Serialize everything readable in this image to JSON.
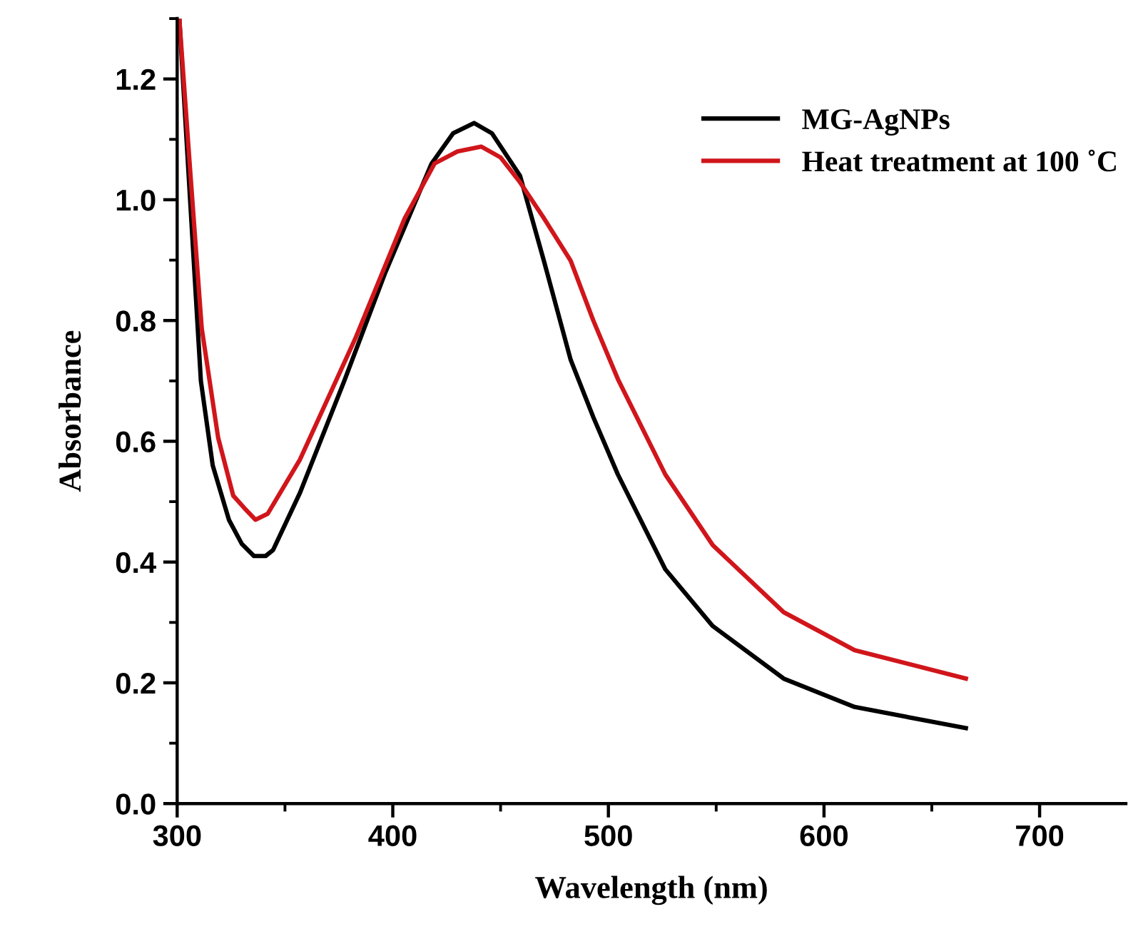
{
  "chart_data": {
    "type": "line",
    "xlabel": "Wavelength (nm)",
    "ylabel": "Absorbance",
    "xlim": [
      300,
      740
    ],
    "ylim": [
      0,
      1.3
    ],
    "xticks": [
      300,
      400,
      500,
      600,
      700
    ],
    "yticks": [
      {
        "value": 0,
        "label": "0.0"
      },
      0.2,
      0.4,
      0.6,
      0.8,
      {
        "value": 1,
        "label": "1.0"
      },
      1.2
    ],
    "legend": "top right",
    "grid": false,
    "line_style": "solid",
    "marker": "none",
    "series": [
      {
        "name": "MG-AgNPs",
        "color": "#000000",
        "x": [
          301,
          306,
          311,
          316.5,
          324,
          330,
          335.6,
          341,
          344.5,
          357,
          377.5,
          396.6,
          418,
          428,
          437.7,
          446,
          459,
          470,
          482.5,
          493,
          504.4,
          526.4,
          548.4,
          581.3,
          614.2,
          665.8
        ],
        "values": [
          1.3,
          1.0,
          0.7,
          0.56,
          0.47,
          0.43,
          0.41,
          0.41,
          0.42,
          0.515,
          0.7,
          0.88,
          1.06,
          1.11,
          1.127,
          1.11,
          1.04,
          0.9,
          0.735,
          0.64,
          0.545,
          0.388,
          0.294,
          0.207,
          0.16,
          0.125
        ]
      },
      {
        "name": "Heat treatment at 100 ˚C",
        "color": "#d0161b",
        "x": [
          301,
          306,
          311.4,
          319,
          326,
          331,
          336.3,
          342,
          357,
          382.6,
          405.5,
          419.4,
          430,
          441,
          450,
          458.8,
          470,
          482.5,
          493,
          504.4,
          526.4,
          548.4,
          581.3,
          614.2,
          665.8
        ],
        "values": [
          1.3,
          1.05,
          0.787,
          0.606,
          0.51,
          0.49,
          0.47,
          0.48,
          0.57,
          0.77,
          0.969,
          1.06,
          1.08,
          1.088,
          1.07,
          1.03,
          0.97,
          0.899,
          0.8,
          0.703,
          0.545,
          0.428,
          0.317,
          0.254,
          0.207
        ]
      }
    ]
  }
}
